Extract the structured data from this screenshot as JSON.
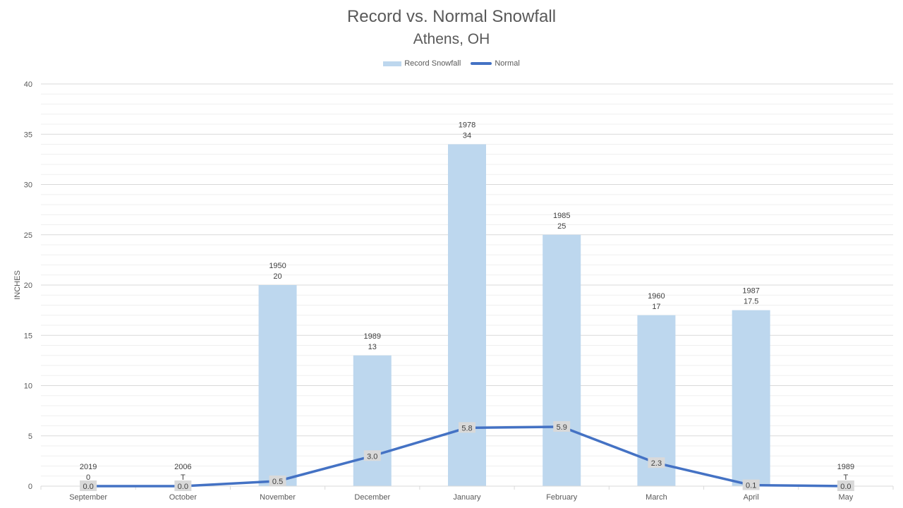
{
  "chart_data": {
    "type": "bar",
    "title": "Record vs. Normal Snowfall",
    "subtitle": "Athens, OH",
    "ylabel": "INCHES",
    "xlabel": "",
    "ylim": [
      0,
      40
    ],
    "yticks": [
      0,
      5,
      10,
      15,
      20,
      25,
      30,
      35,
      40
    ],
    "grid": true,
    "legend_position": "top",
    "categories": [
      "September",
      "October",
      "November",
      "December",
      "January",
      "February",
      "March",
      "April",
      "May"
    ],
    "series": [
      {
        "name": "Record Snowfall",
        "kind": "bar",
        "color": "#bdd7ee",
        "values": [
          0,
          0,
          20,
          13,
          34,
          25,
          17,
          17.5,
          0
        ],
        "value_labels": [
          "0",
          "T",
          "20",
          "13",
          "34",
          "25",
          "17",
          "17.5",
          "T"
        ],
        "year_labels": [
          "2019",
          "2006",
          "1950",
          "1989",
          "1978",
          "1985",
          "1960",
          "1987",
          "1989"
        ]
      },
      {
        "name": "Normal",
        "kind": "line",
        "color": "#4472c4",
        "values": [
          0.0,
          0.0,
          0.5,
          3.0,
          5.8,
          5.9,
          2.3,
          0.1,
          0.0
        ],
        "value_labels": [
          "0.0",
          "0.0",
          "0.5",
          "3.0",
          "5.8",
          "5.9",
          "2.3",
          "0.1",
          "0.0"
        ]
      }
    ]
  }
}
